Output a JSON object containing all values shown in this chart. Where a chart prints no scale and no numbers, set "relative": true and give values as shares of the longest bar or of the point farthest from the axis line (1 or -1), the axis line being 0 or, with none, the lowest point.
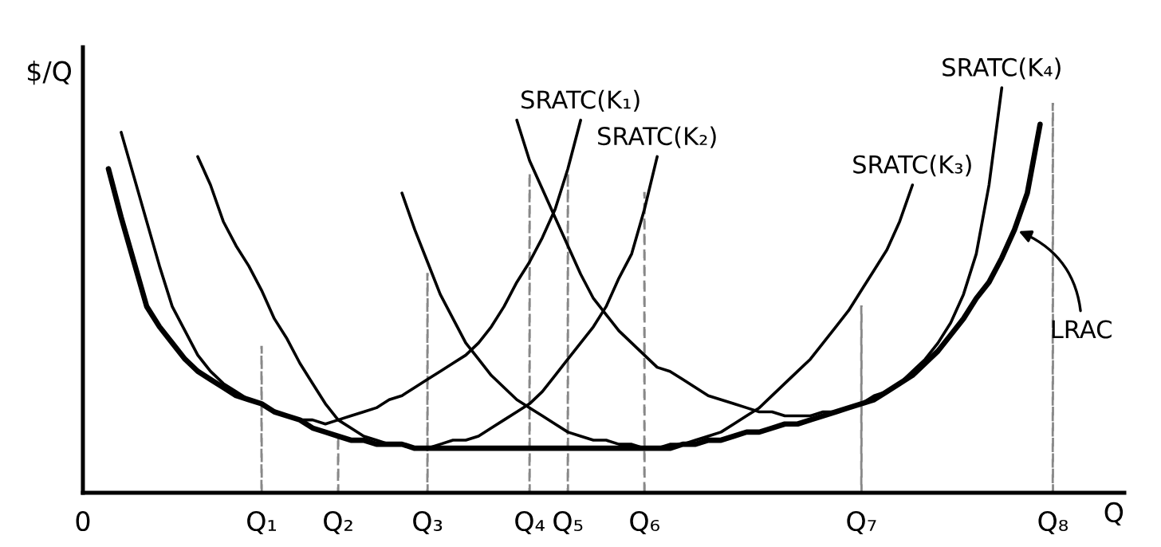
{
  "chart_data": {
    "type": "line",
    "relative": true,
    "xlabel": "Q",
    "ylabel": "$/Q",
    "marker": "none",
    "line_style": "solid",
    "categories": [
      "0",
      null,
      null,
      null,
      null,
      null,
      null,
      null,
      null,
      null,
      null,
      null,
      null,
      null,
      "Q₁",
      null,
      null,
      null,
      null,
      null,
      "Q₂",
      null,
      null,
      null,
      null,
      null,
      null,
      "Q₃",
      null,
      null,
      null,
      null,
      null,
      null,
      null,
      "Q₄",
      null,
      null,
      "Q₅",
      null,
      null,
      null,
      null,
      null,
      "Q₆",
      null,
      null,
      null,
      null,
      null,
      null,
      null,
      null,
      null,
      null,
      null,
      null,
      null,
      null,
      null,
      null,
      "Q₇",
      null,
      null,
      null,
      null,
      null,
      null,
      null,
      null,
      null,
      null,
      null,
      null,
      null,
      null,
      "Q₈",
      null,
      null,
      null,
      null,
      null
    ],
    "series": [
      {
        "name": "LRAC",
        "color": "#000000",
        "values": [
          null,
          null,
          0.8,
          0.68,
          0.57,
          0.46,
          0.41,
          0.37,
          0.33,
          0.3,
          0.28,
          0.26,
          0.24,
          0.23,
          0.22,
          0.2,
          0.19,
          0.18,
          0.16,
          0.15,
          0.14,
          0.13,
          0.13,
          0.12,
          0.12,
          0.12,
          0.11,
          0.11,
          0.11,
          0.11,
          0.11,
          0.11,
          0.11,
          0.11,
          0.11,
          0.11,
          0.11,
          0.11,
          0.11,
          0.11,
          0.11,
          0.11,
          0.11,
          0.11,
          0.11,
          0.11,
          0.11,
          0.12,
          0.12,
          0.13,
          0.13,
          0.14,
          0.15,
          0.15,
          0.16,
          0.17,
          0.17,
          0.18,
          0.19,
          0.2,
          0.21,
          0.22,
          0.23,
          0.25,
          0.27,
          0.29,
          0.32,
          0.35,
          0.39,
          0.43,
          0.48,
          0.52,
          0.58,
          0.65,
          0.74,
          0.91,
          null,
          null,
          null,
          null,
          null,
          null
        ]
      },
      {
        "name": "SRATC(K₁)",
        "color": "#000000",
        "values": [
          null,
          null,
          null,
          0.89,
          0.78,
          0.67,
          0.56,
          0.46,
          0.4,
          0.34,
          0.3,
          0.27,
          0.25,
          0.23,
          0.22,
          0.2,
          0.19,
          0.18,
          0.18,
          0.17,
          0.18,
          0.19,
          0.2,
          0.21,
          0.23,
          0.24,
          0.26,
          0.28,
          0.3,
          0.32,
          0.34,
          0.37,
          0.41,
          0.46,
          0.52,
          0.57,
          0.63,
          0.7,
          0.8,
          0.92,
          null,
          null,
          null,
          null,
          null,
          null,
          null,
          null,
          null,
          null,
          null,
          null,
          null,
          null,
          null,
          null,
          null,
          null,
          null,
          null,
          null,
          null,
          null,
          null,
          null,
          null,
          null,
          null,
          null,
          null,
          null,
          null,
          null,
          null,
          null,
          null,
          null,
          null,
          null,
          null,
          null,
          null
        ]
      },
      {
        "name": "SRATC(K₂)",
        "color": "#000000",
        "values": [
          null,
          null,
          null,
          null,
          null,
          null,
          null,
          null,
          null,
          0.83,
          0.76,
          0.67,
          0.61,
          0.56,
          0.5,
          0.43,
          0.38,
          0.32,
          0.27,
          0.22,
          0.18,
          0.16,
          0.14,
          0.13,
          0.12,
          0.12,
          0.11,
          0.11,
          0.12,
          0.13,
          0.13,
          0.14,
          0.16,
          0.18,
          0.2,
          0.22,
          0.25,
          0.29,
          0.33,
          0.37,
          0.41,
          0.46,
          0.53,
          0.59,
          0.7,
          0.83,
          null,
          null,
          null,
          null,
          null,
          null,
          null,
          null,
          null,
          null,
          null,
          null,
          null,
          null,
          null,
          null,
          null,
          null,
          null,
          null,
          null,
          null,
          null,
          null,
          null,
          null,
          null,
          null,
          null,
          null,
          null,
          null,
          null,
          null,
          null,
          null
        ]
      },
      {
        "name": "SRATC(K₃)",
        "color": "#000000",
        "values": [
          null,
          null,
          null,
          null,
          null,
          null,
          null,
          null,
          null,
          null,
          null,
          null,
          null,
          null,
          null,
          null,
          null,
          null,
          null,
          null,
          null,
          null,
          null,
          null,
          null,
          0.74,
          0.65,
          0.57,
          0.49,
          0.43,
          0.37,
          0.33,
          0.29,
          0.26,
          0.23,
          0.21,
          0.19,
          0.17,
          0.15,
          0.14,
          0.13,
          0.13,
          0.12,
          0.12,
          0.11,
          0.11,
          0.12,
          0.12,
          0.13,
          0.14,
          0.15,
          0.17,
          0.19,
          0.21,
          0.24,
          0.27,
          0.3,
          0.33,
          0.37,
          0.41,
          0.45,
          0.5,
          0.55,
          0.6,
          0.67,
          0.76,
          null,
          null,
          null,
          null,
          null,
          null,
          null,
          null,
          null,
          null,
          null,
          null,
          null,
          null,
          null,
          null
        ]
      },
      {
        "name": "SRATC(K₄)",
        "color": "#000000",
        "values": [
          null,
          null,
          null,
          null,
          null,
          null,
          null,
          null,
          null,
          null,
          null,
          null,
          null,
          null,
          null,
          null,
          null,
          null,
          null,
          null,
          null,
          null,
          null,
          null,
          null,
          null,
          null,
          null,
          null,
          null,
          null,
          null,
          null,
          null,
          0.92,
          0.82,
          0.75,
          0.68,
          0.61,
          0.54,
          0.48,
          0.44,
          0.4,
          0.37,
          0.34,
          0.31,
          0.3,
          0.28,
          0.26,
          0.24,
          0.23,
          0.22,
          0.21,
          0.2,
          0.2,
          0.19,
          0.19,
          0.19,
          0.2,
          0.2,
          0.21,
          0.22,
          0.24,
          0.25,
          0.27,
          0.3,
          0.33,
          0.37,
          0.42,
          0.49,
          0.59,
          0.76,
          1.0,
          null,
          null,
          null,
          null,
          null,
          null,
          null,
          null,
          null
        ]
      },
      {
        "type": "bar",
        "color": "#888888",
        "line_style": "dashed",
        "values": [
          null,
          null,
          null,
          null,
          null,
          null,
          null,
          null,
          null,
          null,
          null,
          null,
          null,
          null,
          0.36,
          null,
          null,
          null,
          null,
          null,
          0.14,
          null,
          null,
          null,
          null,
          null,
          null,
          0.54,
          null,
          null,
          null,
          null,
          null,
          null,
          null,
          0.79,
          null,
          null,
          0.79,
          null,
          null,
          null,
          null,
          null,
          0.74,
          null,
          null,
          null,
          null,
          null,
          null,
          null,
          null,
          null,
          null,
          null,
          null,
          null,
          null,
          null,
          null,
          0.46,
          null,
          null,
          null,
          null,
          null,
          null,
          null,
          null,
          null,
          null,
          null,
          null,
          null,
          null,
          0.96,
          null,
          null,
          null,
          null,
          null
        ]
      }
    ]
  }
}
